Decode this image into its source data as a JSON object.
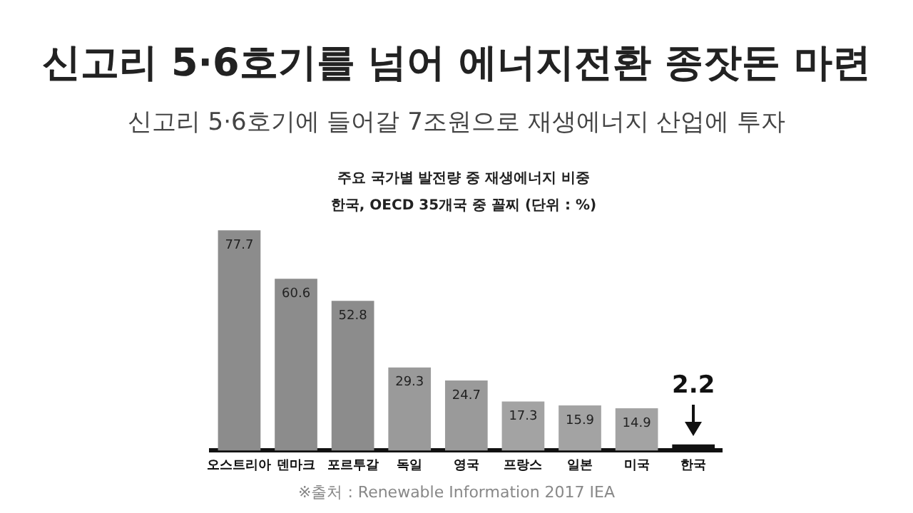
{
  "chart_data": {
    "type": "bar",
    "title": "신고리 5·6호기를 넘어 에너지전환 종잣돈 마련",
    "subtitle": "신고리 5·6호기에 들어갈 7조원으로 재생에너지 산업에 투자",
    "annotations": [
      "주요 국가별 발전량 중 재생에너지 비중",
      "한국, OECD 35개국 중 꼴찌 (단위 : %)",
      "※출처 : Renewable Information 2017 IEA"
    ],
    "categories": [
      "오스트리아",
      "덴마크",
      "포르투갈",
      "독일",
      "영국",
      "프랑스",
      "일본",
      "미국",
      "한국"
    ],
    "values": [
      77.7,
      60.6,
      52.8,
      29.3,
      24.7,
      17.3,
      15.9,
      14.9,
      2.2
    ],
    "colors": [
      "#8c8c8c",
      "#8c8c8c",
      "#8c8c8c",
      "#9a9a9a",
      "#9a9a9a",
      "#a3a3a3",
      "#a3a3a3",
      "#a3a3a3",
      "#111111"
    ],
    "data_labels": true,
    "grid": false,
    "legend": false
  }
}
